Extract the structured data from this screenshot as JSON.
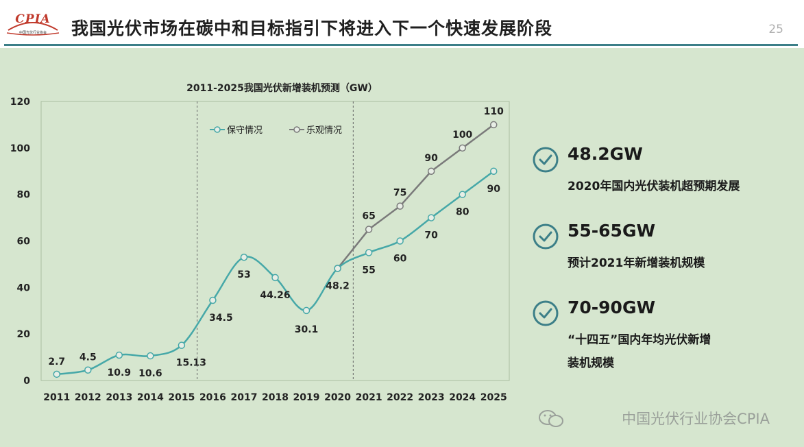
{
  "header": {
    "logo_text": "CPIA",
    "logo_subtext": "中国光伏行业协会",
    "title": "我国光伏市场在碳中和目标指引下将进入下一个快速发展阶段",
    "page_number": "25"
  },
  "colors": {
    "background": "#d6e6cf",
    "accent": "#3c7f88",
    "conservative_line": "#46a8a8",
    "optimistic_line": "#7a7a7a"
  },
  "chart_data": {
    "type": "line",
    "title": "2011-2025我国光伏新增装机预测（GW）",
    "categories": [
      "2011",
      "2012",
      "2013",
      "2014",
      "2015",
      "2016",
      "2017",
      "2018",
      "2019",
      "2020",
      "2021",
      "2022",
      "2023",
      "2024",
      "2025"
    ],
    "ylim": [
      0,
      120
    ],
    "yticks": [
      0,
      20,
      40,
      60,
      80,
      100,
      120
    ],
    "grid": false,
    "legend": "top",
    "series": [
      {
        "name": "保守情况",
        "values": [
          2.7,
          4.5,
          10.9,
          10.6,
          15.13,
          34.5,
          53,
          44.26,
          30.1,
          48.2,
          55,
          60,
          70,
          80,
          90
        ],
        "labels": [
          "2.7",
          "4.5",
          "10.9",
          "10.6",
          "15.13",
          "34.5",
          "53",
          "44.26",
          "30.1",
          "48.2",
          "55",
          "60",
          "70",
          "80",
          "90"
        ]
      },
      {
        "name": "乐观情况",
        "x": [
          "2020",
          "2021",
          "2022",
          "2023",
          "2024",
          "2025"
        ],
        "values": [
          48.2,
          65,
          75,
          90,
          100,
          110
        ],
        "labels": [
          "65",
          "75",
          "90",
          "100",
          "110"
        ]
      }
    ],
    "divider_years": [
      "2016",
      "2021"
    ]
  },
  "points": [
    {
      "icon": "check-icon",
      "value": "48.2GW",
      "desc": "2020年国内光伏装机超预期发展"
    },
    {
      "icon": "check-icon",
      "value": "55-65GW",
      "desc": "预计2021年新增装机规模"
    },
    {
      "icon": "check-icon",
      "value": "70-90GW",
      "desc": "“十四五”国内年均光伏新增\n装机规模"
    }
  ],
  "footer": {
    "text": "中国光伏行业协会CPIA",
    "icon": "wechat-icon"
  }
}
